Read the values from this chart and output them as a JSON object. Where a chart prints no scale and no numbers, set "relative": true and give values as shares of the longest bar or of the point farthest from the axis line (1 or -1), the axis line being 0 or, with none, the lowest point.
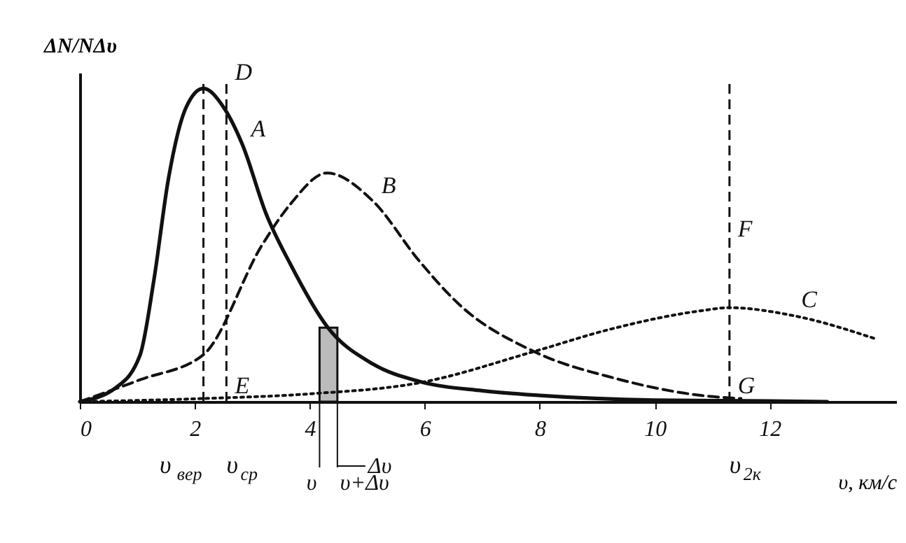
{
  "chart_data": {
    "type": "line",
    "relative": true,
    "xlabel": "υ, км/с",
    "ylabel": "ΔN/NΔυ",
    "xlim": [
      0,
      14.2
    ],
    "xticks": [
      0,
      2,
      4,
      6,
      8,
      10,
      12
    ],
    "grid": false,
    "marker": "none",
    "series": [
      {
        "color": "#111111",
        "line_style": "solid",
        "x": [
          0,
          0.63,
          1.05,
          1.29,
          1.54,
          1.85,
          2.15,
          2.5,
          2.83,
          3.24,
          3.66,
          4.3,
          5.1,
          5.9,
          7,
          8,
          10,
          12,
          13
        ],
        "values": [
          0,
          0.045,
          0.15,
          0.39,
          0.71,
          0.94,
          1.0,
          0.94,
          0.82,
          0.6,
          0.44,
          0.24,
          0.12,
          0.065,
          0.035,
          0.02,
          0.005,
          0.002,
          0
        ]
      },
      {
        "color": "#111111",
        "line_style": "dashed",
        "x": [
          0,
          1.05,
          2.15,
          3.17,
          3.66,
          4.3,
          5.1,
          5.9,
          6.6,
          7.9,
          9.3,
          10.8,
          11.5
        ],
        "values": [
          0,
          0.07,
          0.15,
          0.5,
          0.63,
          0.73,
          0.64,
          0.45,
          0.31,
          0.16,
          0.075,
          0.02,
          0.01
        ]
      },
      {
        "color": "#111111",
        "line_style": "dotted",
        "x": [
          0,
          2.15,
          4,
          5.9,
          7.9,
          9.2,
          10.8,
          11.3,
          12.4,
          13.85
        ],
        "values": [
          0,
          0.01,
          0.025,
          0.06,
          0.16,
          0.23,
          0.29,
          0.3,
          0.275,
          0.2
        ]
      }
    ],
    "ref_lines": [
      {
        "axis": "x",
        "value": 2.15,
        "label": "υ$_{вер}$",
        "line_style": "dashed"
      },
      {
        "axis": "x",
        "value": 2.55,
        "label": "υ$_{ср}$",
        "line_style": "dashed"
      },
      {
        "axis": "x",
        "value": 11.3,
        "label": "υ$_{2к}$",
        "line_style": "dashed"
      }
    ],
    "bands": [
      {
        "axis": "x",
        "from": 4.17,
        "to": 4.48
      }
    ],
    "annotations": [
      {
        "text": "D",
        "x": 2.55,
        "y": 1.0
      },
      {
        "text": "A",
        "x": 2.83,
        "y": 0.82
      },
      {
        "text": "B",
        "x": 5.1,
        "y": 0.64
      },
      {
        "text": "C",
        "x": 12.4,
        "y": 0.275
      },
      {
        "text": "E",
        "x": 2.55,
        "y": 0
      },
      {
        "text": "F",
        "x": 11.3,
        "y": 0.5
      },
      {
        "text": "G",
        "x": 11.3,
        "y": 0
      },
      {
        "text": "υ",
        "x": 4.17,
        "y": 0
      },
      {
        "text": "υ+Δυ",
        "x": 4.48,
        "y": 0
      },
      "Δυ"
    ]
  }
}
